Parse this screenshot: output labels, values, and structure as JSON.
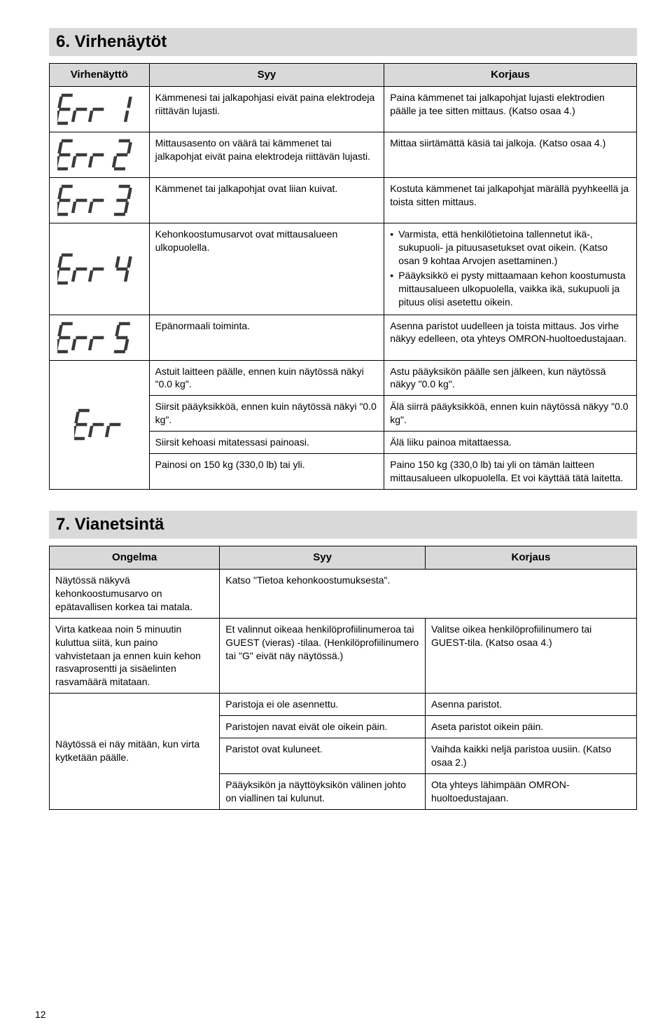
{
  "section6": {
    "title": "6.  Virhenäytöt",
    "headers": [
      "Virhenäyttö",
      "Syy",
      "Korjaus"
    ],
    "seg_color": "#3a3a3a",
    "rows": [
      {
        "code": "Err 1",
        "cause": "Kämmenesi tai jalkapohjasi eivät paina elektrodeja riittävän lujasti.",
        "fix": "Paina kämmenet tai jalkapohjat lujasti elektrodien päälle ja tee sitten mittaus. (Katso osaa 4.)"
      },
      {
        "code": "Err 2",
        "cause": "Mittausasento on väärä tai kämmenet tai jalkapohjat eivät paina elektrodeja riittävän lujasti.",
        "fix": "Mittaa siirtämättä käsiä tai jalkoja. (Katso osaa 4.)"
      },
      {
        "code": "Err 3",
        "cause": "Kämmenet tai jalkapohjat ovat liian kuivat.",
        "fix": "Kostuta kämmenet tai jalkapohjat märällä pyyhkeellä ja toista sitten mittaus."
      },
      {
        "code": "Err 4",
        "cause": "Kehonkoostumusarvot ovat mittausalueen ulkopuolella.",
        "fix_list": [
          "Varmista, että henkilötietoina tallennetut ikä-, sukupuoli- ja pituusasetukset ovat oikein. (Katso osan 9 kohtaa Arvojen asettaminen.)",
          "Pääyksikkö ei pysty mittaamaan kehon koostumusta mittausalueen ulkopuolella, vaikka ikä, sukupuoli ja pituus olisi asetettu oikein."
        ]
      },
      {
        "code": "Err 5",
        "cause": "Epänormaali toiminta.",
        "fix": "Asenna paristot uudelleen ja toista mittaus. Jos virhe näkyy edelleen, ota yhteys OMRON-huoltoedustajaan."
      },
      {
        "code": "Err",
        "subrows": [
          {
            "cause": "Astuit laitteen päälle, ennen kuin näytössä näkyi \"0.0 kg\".",
            "fix": "Astu pääyksikön päälle sen jälkeen, kun näytössä näkyy \"0.0 kg\"."
          },
          {
            "cause": "Siirsit pääyksikköä, ennen kuin näytössä näkyi \"0.0 kg\".",
            "fix": "Älä siirrä pääyksikköä, ennen kuin näytössä näkyy \"0.0 kg\"."
          },
          {
            "cause": "Siirsit kehoasi mitatessasi painoasi.",
            "fix": "Älä liiku painoa mitattaessa."
          },
          {
            "cause": "Painosi on 150 kg (330,0 lb) tai yli.",
            "fix": "Paino 150 kg (330,0 lb) tai yli on tämän laitteen mittausalueen ulkopuolella. Et voi käyttää tätä laitetta."
          }
        ]
      }
    ]
  },
  "section7": {
    "title": "7.  Vianetsintä",
    "headers": [
      "Ongelma",
      "Syy",
      "Korjaus"
    ],
    "rows": [
      {
        "problem": "Näytössä näkyvä kehonkoostumusarvo on epätavallisen korkea tai matala.",
        "cause": "Katso \"Tietoa kehonkoostumuksesta\".",
        "fix": "",
        "colspan_cause": true
      },
      {
        "problem": "Virta katkeaa noin 5 minuutin kuluttua siitä, kun paino vahvistetaan ja ennen kuin kehon rasvaprosentti ja sisäelinten rasvamäärä mitataan.",
        "cause": "Et valinnut oikeaa henkilöprofiilinumeroa tai GUEST (vieras) -tilaa. (Henkilöprofiilinumero tai \"G\" eivät näy näytössä.)",
        "fix": "Valitse oikea henkilöprofiilinumero tai GUEST-tila. (Katso osaa 4.)"
      },
      {
        "problem": "Näytössä ei näy mitään, kun virta kytketään päälle.",
        "subrows": [
          {
            "cause": "Paristoja ei ole asennettu.",
            "fix": "Asenna paristot."
          },
          {
            "cause": "Paristojen navat eivät ole oikein päin.",
            "fix": "Aseta paristot oikein päin."
          },
          {
            "cause": "Paristot ovat kuluneet.",
            "fix": "Vaihda kaikki neljä paristoa uusiin. (Katso osaa 2.)"
          },
          {
            "cause": "Pääyksikön ja näyttöyksikön välinen johto on viallinen tai kulunut.",
            "fix": "Ota yhteys lähimpään OMRON-huoltoedustajaan."
          }
        ]
      }
    ]
  },
  "page_number": "12"
}
